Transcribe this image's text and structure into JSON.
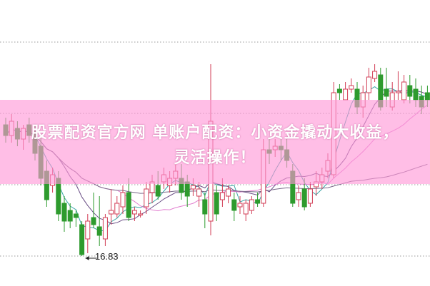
{
  "chart_data": {
    "type": "candlestick",
    "ylim": [
      16.83,
      19.83
    ],
    "grid": true,
    "colors": {
      "up": "#d23c55",
      "down": "#2e9b2e",
      "ma5": "#3aa6a6",
      "ma10": "#6b4f86",
      "ma20": "#e27fd0",
      "ma60": "#7a6a8a"
    },
    "ohlc": [
      [
        18.67,
        18.77,
        18.42,
        18.52
      ],
      [
        18.52,
        18.82,
        18.42,
        18.72
      ],
      [
        18.62,
        18.72,
        18.37,
        18.47
      ],
      [
        18.47,
        18.67,
        18.32,
        18.62
      ],
      [
        18.67,
        18.77,
        18.42,
        18.52
      ],
      [
        18.57,
        18.67,
        18.17,
        18.27
      ],
      [
        18.37,
        18.52,
        17.82,
        17.92
      ],
      [
        18.02,
        18.17,
        17.52,
        17.62
      ],
      [
        17.82,
        18.07,
        17.72,
        17.97
      ],
      [
        17.92,
        18.02,
        17.32,
        17.42
      ],
      [
        17.57,
        17.67,
        17.17,
        17.32
      ],
      [
        17.47,
        17.57,
        17.22,
        17.32
      ],
      [
        17.42,
        17.47,
        17.24,
        17.37
      ],
      [
        17.27,
        17.32,
        16.83,
        16.85
      ],
      [
        17.07,
        17.42,
        16.87,
        17.32
      ],
      [
        17.37,
        17.72,
        17.22,
        17.27
      ],
      [
        17.24,
        17.67,
        16.97,
        17.12
      ],
      [
        17.07,
        17.42,
        16.97,
        17.37
      ],
      [
        17.42,
        17.77,
        17.27,
        17.47
      ],
      [
        17.42,
        17.67,
        17.37,
        17.57
      ],
      [
        17.52,
        17.82,
        17.42,
        17.72
      ],
      [
        17.72,
        17.92,
        17.32,
        17.37
      ],
      [
        17.42,
        17.52,
        17.32,
        17.47
      ],
      [
        17.42,
        17.47,
        17.37,
        17.42
      ],
      [
        17.52,
        17.87,
        17.42,
        17.77
      ],
      [
        17.72,
        17.97,
        17.57,
        17.87
      ],
      [
        17.82,
        18.02,
        17.62,
        17.67
      ],
      [
        17.87,
        18.07,
        17.77,
        17.97
      ],
      [
        17.82,
        18.02,
        17.72,
        17.92
      ],
      [
        17.92,
        18.12,
        17.82,
        18.02
      ],
      [
        17.92,
        18.12,
        17.62,
        17.72
      ],
      [
        17.87,
        17.97,
        17.52,
        17.67
      ],
      [
        17.77,
        17.92,
        17.67,
        17.82
      ],
      [
        17.67,
        17.87,
        17.52,
        17.77
      ],
      [
        17.62,
        17.72,
        17.22,
        17.42
      ],
      [
        17.32,
        19.52,
        17.12,
        18.72
      ],
      [
        17.72,
        17.82,
        17.32,
        17.42
      ],
      [
        17.62,
        17.92,
        17.52,
        17.72
      ],
      [
        17.67,
        17.82,
        17.57,
        17.77
      ],
      [
        17.62,
        17.72,
        17.32,
        17.47
      ],
      [
        17.52,
        17.67,
        17.42,
        17.57
      ],
      [
        17.42,
        17.62,
        17.32,
        17.57
      ],
      [
        17.47,
        17.67,
        17.42,
        17.62
      ],
      [
        17.62,
        17.72,
        17.52,
        17.57
      ],
      [
        17.57,
        18.47,
        17.52,
        18.32
      ],
      [
        18.32,
        18.47,
        18.12,
        18.27
      ],
      [
        18.32,
        18.47,
        18.22,
        18.37
      ],
      [
        18.37,
        18.47,
        18.17,
        18.32
      ],
      [
        18.32,
        18.47,
        18.07,
        18.17
      ],
      [
        18.02,
        18.12,
        17.52,
        17.57
      ],
      [
        17.62,
        17.82,
        17.52,
        17.72
      ],
      [
        17.77,
        17.92,
        17.47,
        17.52
      ],
      [
        17.57,
        17.87,
        17.52,
        17.77
      ],
      [
        17.8,
        18.02,
        17.67,
        17.87
      ],
      [
        17.87,
        18.07,
        17.77,
        17.97
      ],
      [
        18.02,
        18.27,
        17.92,
        18.17
      ],
      [
        17.97,
        19.27,
        17.92,
        19.12
      ],
      [
        19.17,
        19.24,
        19.02,
        19.12
      ],
      [
        19.02,
        19.27,
        19.02,
        19.17
      ],
      [
        19.17,
        19.32,
        19.12,
        19.22
      ],
      [
        19.17,
        19.27,
        18.82,
        18.92
      ],
      [
        18.92,
        19.22,
        18.77,
        19.12
      ],
      [
        19.12,
        19.47,
        19.02,
        19.34
      ],
      [
        19.32,
        19.52,
        19.27,
        19.42
      ],
      [
        19.37,
        19.47,
        18.87,
        18.92
      ],
      [
        19.17,
        19.47,
        18.92,
        19.07
      ],
      [
        18.92,
        19.27,
        18.87,
        19.12
      ],
      [
        19.12,
        19.42,
        19.02,
        19.14
      ],
      [
        19.02,
        19.37,
        18.97,
        19.27
      ],
      [
        19.22,
        19.37,
        18.97,
        19.07
      ],
      [
        19.17,
        19.32,
        18.92,
        19.02
      ],
      [
        19.07,
        19.22,
        18.82,
        18.92
      ],
      [
        19.12,
        19.22,
        18.92,
        19.02
      ]
    ],
    "annotations": [
      {
        "text": "16.83",
        "type": "low-marker"
      }
    ]
  },
  "banner": {
    "line1": "股票配资官方网 单账户配资：小资金撬动大收益，",
    "line2": "灵活操作！"
  }
}
